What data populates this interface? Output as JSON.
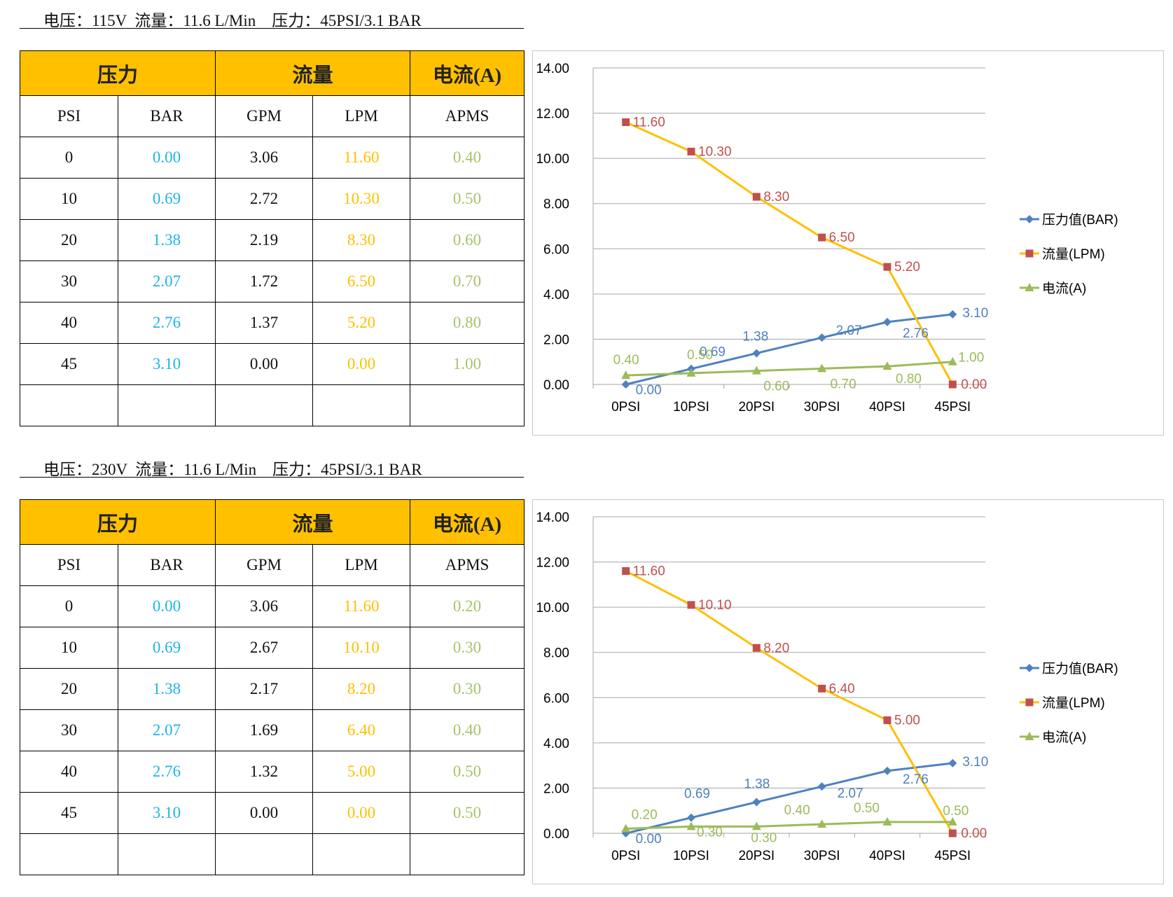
{
  "sections": [
    {
      "heading": "电压：115V  流量：11.6 L/Min    压力：45PSI/3.1 BAR",
      "table": {
        "group_headers": [
          "压力",
          "流量",
          "电流(A)"
        ],
        "sub_headers": [
          "PSI",
          "BAR",
          "GPM",
          "LPM",
          "APMS"
        ],
        "rows": [
          [
            "0",
            "0.00",
            "3.06",
            "11.60",
            "0.40"
          ],
          [
            "10",
            "0.69",
            "2.72",
            "10.30",
            "0.50"
          ],
          [
            "20",
            "1.38",
            "2.19",
            "8.30",
            "0.60"
          ],
          [
            "30",
            "2.07",
            "1.72",
            "6.50",
            "0.70"
          ],
          [
            "40",
            "2.76",
            "1.37",
            "5.20",
            "0.80"
          ],
          [
            "45",
            "3.10",
            "0.00",
            "0.00",
            "1.00"
          ],
          [
            "",
            "",
            "",
            "",
            ""
          ]
        ]
      }
    },
    {
      "heading": "电压：230V  流量：11.6 L/Min    压力：45PSI/3.1 BAR",
      "table": {
        "group_headers": [
          "压力",
          "流量",
          "电流(A)"
        ],
        "sub_headers": [
          "PSI",
          "BAR",
          "GPM",
          "LPM",
          "APMS"
        ],
        "rows": [
          [
            "0",
            "0.00",
            "3.06",
            "11.60",
            "0.20"
          ],
          [
            "10",
            "0.69",
            "2.67",
            "10.10",
            "0.30"
          ],
          [
            "20",
            "1.38",
            "2.17",
            "8.20",
            "0.30"
          ],
          [
            "30",
            "2.07",
            "1.69",
            "6.40",
            "0.40"
          ],
          [
            "40",
            "2.76",
            "1.32",
            "5.00",
            "0.50"
          ],
          [
            "45",
            "3.10",
            "0.00",
            "0.00",
            "0.50"
          ],
          [
            "",
            "",
            "",
            "",
            ""
          ]
        ]
      }
    }
  ],
  "colors": {
    "header_fill": "#FFC000",
    "bar_text": "#1FB4E6",
    "lpm_text": "#FFC000",
    "amp_text": "#A6C36A",
    "pressure_series": "#4F81BD",
    "flow_series": "#FFC000",
    "flow_marker": "#C0504D",
    "flow_label": "#C0504D",
    "current_series": "#9BBB59",
    "gridline": "#A6A6A6"
  },
  "chart_data": [
    {
      "type": "line",
      "categories": [
        "0PSI",
        "10PSI",
        "20PSI",
        "30PSI",
        "40PSI",
        "45PSI"
      ],
      "ylim": [
        0,
        14
      ],
      "yticks": [
        "0.00",
        "2.00",
        "4.00",
        "6.00",
        "8.00",
        "10.00",
        "12.00",
        "14.00"
      ],
      "grid": true,
      "legend_position": "right",
      "series": [
        {
          "name": "压力值(BAR)",
          "marker": "diamond",
          "values": [
            0.0,
            0.69,
            1.38,
            2.07,
            2.76,
            3.1
          ],
          "labels": [
            "0.00",
            "0.69",
            "1.38",
            "2.07",
            "2.76",
            "3.10"
          ]
        },
        {
          "name": "流量(LPM)",
          "marker": "square",
          "values": [
            11.6,
            10.3,
            8.3,
            6.5,
            5.2,
            0.0
          ],
          "labels": [
            "11.60",
            "10.30",
            "8.30",
            "6.50",
            "5.20",
            "0.00"
          ]
        },
        {
          "name": "电流(A)",
          "marker": "triangle",
          "values": [
            0.4,
            0.5,
            0.6,
            0.7,
            0.8,
            1.0
          ],
          "labels": [
            "0.40",
            "0.50",
            "0.60",
            "0.70",
            "0.80",
            "1.00"
          ]
        }
      ]
    },
    {
      "type": "line",
      "categories": [
        "0PSI",
        "10PSI",
        "20PSI",
        "30PSI",
        "40PSI",
        "45PSI"
      ],
      "ylim": [
        0,
        14
      ],
      "yticks": [
        "0.00",
        "2.00",
        "4.00",
        "6.00",
        "8.00",
        "10.00",
        "12.00",
        "14.00"
      ],
      "grid": true,
      "legend_position": "right",
      "series": [
        {
          "name": "压力值(BAR)",
          "marker": "diamond",
          "values": [
            0.0,
            0.69,
            1.38,
            2.07,
            2.76,
            3.1
          ],
          "labels": [
            "0.00",
            "0.69",
            "1.38",
            "2.07",
            "2.76",
            "3.10"
          ]
        },
        {
          "name": "流量(LPM)",
          "marker": "square",
          "values": [
            11.6,
            10.1,
            8.2,
            6.4,
            5.0,
            0.0
          ],
          "labels": [
            "11.60",
            "10.10",
            "8.20",
            "6.40",
            "5.00",
            "0.00"
          ]
        },
        {
          "name": "电流(A)",
          "marker": "triangle",
          "values": [
            0.2,
            0.3,
            0.3,
            0.4,
            0.5,
            0.5
          ],
          "labels": [
            "0.20",
            "0.30",
            "0.30",
            "0.40",
            "0.50",
            "0.50"
          ]
        }
      ]
    }
  ]
}
